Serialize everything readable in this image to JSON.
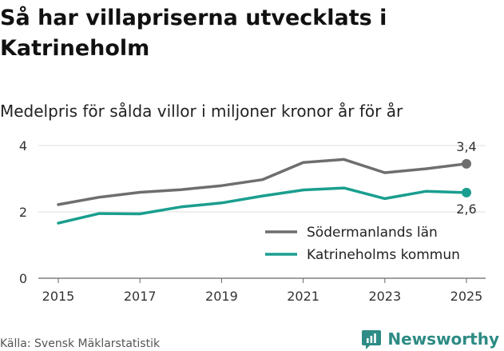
{
  "title": "Så har villapriserna utvecklats i Katrineholm",
  "subtitle": "Medelpris för sålda villor i miljoner kronor år för år",
  "source": "Källa: Svensk Mäklarstatistik",
  "brand": {
    "name": "Newsworthy",
    "icon": "newsworthy-logo-icon",
    "color": "#2e8b85"
  },
  "chart_data": {
    "type": "line",
    "title": "Så har villapriserna utvecklats i Katrineholm",
    "subtitle": "Medelpris för sålda villor i miljoner kronor år för år",
    "xlabel": "",
    "ylabel": "",
    "x": [
      2015,
      2016,
      2017,
      2018,
      2019,
      2020,
      2021,
      2022,
      2023,
      2024,
      2025
    ],
    "xticks": [
      "2015",
      "2017",
      "2019",
      "2021",
      "2023",
      "2025"
    ],
    "yticks": [
      "0",
      "2",
      "4"
    ],
    "ylim": [
      0,
      4
    ],
    "xlim": [
      2015,
      2025
    ],
    "grid": true,
    "legend_position": "right",
    "series": [
      {
        "name": "Södermanlands län",
        "color": "#6e6e6e",
        "values": [
          2.22,
          2.44,
          2.59,
          2.67,
          2.79,
          2.97,
          3.49,
          3.58,
          3.18,
          3.3,
          3.45
        ],
        "end_label": "3,4"
      },
      {
        "name": "Katrineholms kommun",
        "color": "#1a9e8f",
        "values": [
          1.66,
          1.95,
          1.94,
          2.15,
          2.27,
          2.48,
          2.66,
          2.72,
          2.4,
          2.62,
          2.58
        ],
        "end_label": "2,6"
      }
    ]
  }
}
